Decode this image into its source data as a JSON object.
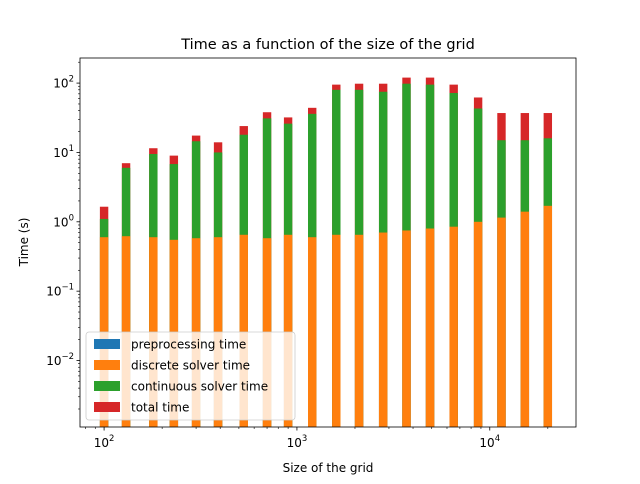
{
  "chart_data": {
    "type": "bar",
    "stacked": true,
    "title": "Time as a function of the size of the grid",
    "xlabel": "Size of the grid",
    "ylabel": "Time (s)",
    "xscale": "log",
    "yscale": "log",
    "xlim": [
      75,
      28000
    ],
    "ylim": [
      0.0011,
      230
    ],
    "x_ticks": [
      {
        "value": 100,
        "base": "10",
        "exp": "2"
      },
      {
        "value": 1000,
        "base": "10",
        "exp": "3"
      },
      {
        "value": 10000,
        "base": "10",
        "exp": "4"
      }
    ],
    "y_ticks": [
      {
        "value": 0.01,
        "base": "10",
        "exp": "−2"
      },
      {
        "value": 0.1,
        "base": "10",
        "exp": "−1"
      },
      {
        "value": 1,
        "base": "10",
        "exp": "0"
      },
      {
        "value": 10,
        "base": "10",
        "exp": "1"
      },
      {
        "value": 100,
        "base": "10",
        "exp": "2"
      }
    ],
    "x": [
      100,
      130,
      180,
      230,
      300,
      390,
      530,
      700,
      900,
      1200,
      1600,
      2100,
      2800,
      3700,
      4900,
      6500,
      8700,
      11500,
      15200,
      20000
    ],
    "series": [
      {
        "name": "preprocessing time",
        "color": "#1f77b4",
        "values": [
          0.0011,
          0.0011,
          0.0011,
          0.0011,
          0.0011,
          0.0011,
          0.0011,
          0.0011,
          0.0011,
          0.0011,
          0.0011,
          0.0011,
          0.0011,
          0.0011,
          0.0011,
          0.0011,
          0.0011,
          0.0011,
          0.0011,
          0.0011
        ]
      },
      {
        "name": "discrete solver time",
        "color": "#ff7f0e",
        "values": [
          0.6,
          0.62,
          0.6,
          0.55,
          0.58,
          0.6,
          0.65,
          0.58,
          0.65,
          0.6,
          0.65,
          0.65,
          0.7,
          0.75,
          0.8,
          0.85,
          1.0,
          1.15,
          1.4,
          1.7
        ]
      },
      {
        "name": "continuous solver time",
        "color": "#2ca02c",
        "values": [
          1.1,
          6.0,
          9.5,
          6.8,
          14.5,
          10.0,
          18.0,
          31.0,
          26.0,
          36.0,
          80.0,
          80.0,
          75.0,
          98.0,
          95.0,
          72.0,
          43.0,
          15.0,
          15.0,
          16.0
        ]
      },
      {
        "name": "total time",
        "color": "#d62728",
        "values": [
          1.65,
          7.0,
          11.5,
          9.0,
          17.5,
          14.0,
          24.0,
          38.0,
          32.0,
          44.0,
          95.0,
          98.0,
          98.0,
          120.0,
          120.0,
          95.0,
          62.0,
          37.0,
          37.0,
          37.0
        ]
      }
    ],
    "legend_position": "lower-left",
    "grid": false
  }
}
